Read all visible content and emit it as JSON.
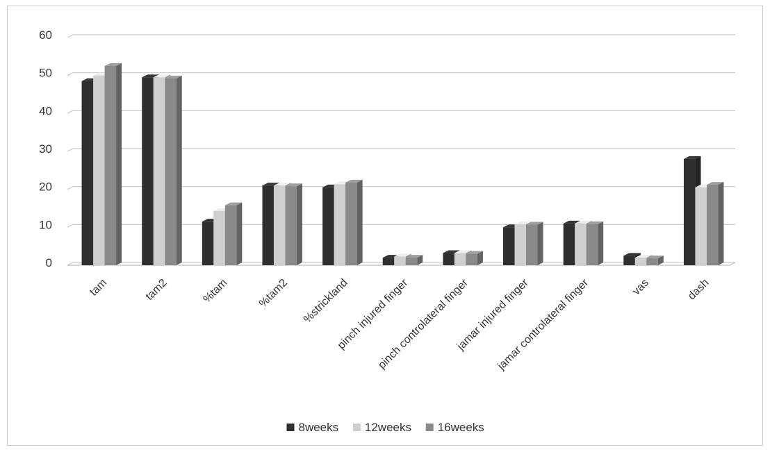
{
  "chart_data": {
    "type": "bar",
    "title": "",
    "xlabel": "",
    "ylabel": "",
    "ylim": [
      0,
      60
    ],
    "yticks": [
      0,
      10,
      20,
      30,
      40,
      50,
      60
    ],
    "grid": true,
    "legend_position": "bottom",
    "categories": [
      "tam",
      "tam2",
      "%tam",
      "%tam2",
      "%strickland",
      "pinch injured finger",
      "pinch controlateral finger",
      "jamar injured finger",
      "jamar controlateral finger",
      "vas",
      "dash"
    ],
    "series": [
      {
        "name": "8weeks",
        "color": "#2f2f2f",
        "values": [
          48.5,
          49.5,
          11.5,
          21,
          20.5,
          2,
          3.2,
          10,
          11,
          2.5,
          28
        ]
      },
      {
        "name": "12weeks",
        "color": "#cfcfcf",
        "values": [
          50,
          49.5,
          14.3,
          21,
          21.3,
          2.3,
          3.2,
          10.8,
          11,
          2,
          20.5
        ]
      },
      {
        "name": "16weeks",
        "color": "#8a8a8a",
        "values": [
          52.5,
          49.2,
          15.8,
          20.8,
          21.8,
          2,
          3,
          10.7,
          10.8,
          1.8,
          21.2
        ]
      }
    ]
  }
}
